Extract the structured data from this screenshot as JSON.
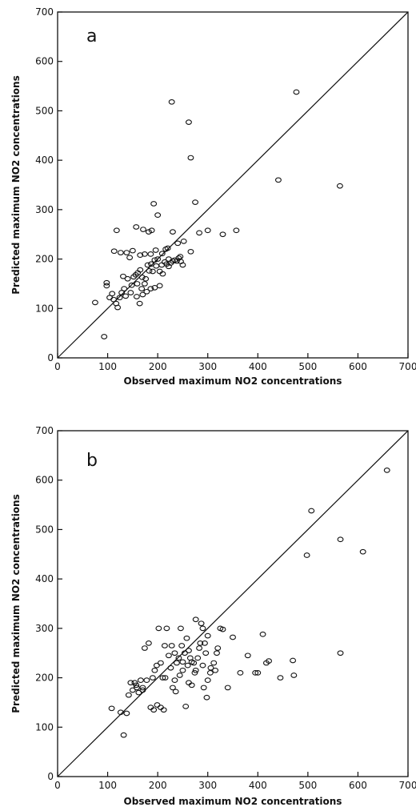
{
  "chart_data": [
    {
      "type": "scatter",
      "panel_label": "a",
      "xlabel": "Observed maximum NO2 concentrations",
      "ylabel": "Predicted maximum NO2 concentrations",
      "xlim": [
        0,
        700
      ],
      "ylim": [
        0,
        700
      ],
      "xticks": [
        "0",
        "100",
        "200",
        "300",
        "400",
        "500",
        "600",
        "700"
      ],
      "yticks": [
        "0",
        "100",
        "200",
        "300",
        "400",
        "500",
        "600",
        "700"
      ],
      "reference_line": "1:1",
      "grid": false,
      "points": [
        [
          228,
          518
        ],
        [
          262,
          477
        ],
        [
          477,
          538
        ],
        [
          266,
          405
        ],
        [
          441,
          360
        ],
        [
          564,
          348
        ],
        [
          192,
          312
        ],
        [
          275,
          315
        ],
        [
          200,
          289
        ],
        [
          118,
          258
        ],
        [
          157,
          265
        ],
        [
          171,
          260
        ],
        [
          182,
          255
        ],
        [
          188,
          258
        ],
        [
          230,
          255
        ],
        [
          300,
          258
        ],
        [
          330,
          250
        ],
        [
          357,
          258
        ],
        [
          113,
          216
        ],
        [
          126,
          213
        ],
        [
          138,
          213
        ],
        [
          150,
          217
        ],
        [
          144,
          203
        ],
        [
          165,
          208
        ],
        [
          174,
          210
        ],
        [
          186,
          210
        ],
        [
          196,
          218
        ],
        [
          209,
          211
        ],
        [
          216,
          220
        ],
        [
          220,
          222
        ],
        [
          240,
          232
        ],
        [
          252,
          236
        ],
        [
          266,
          215
        ],
        [
          283,
          253
        ],
        [
          98,
          152
        ],
        [
          98,
          146
        ],
        [
          104,
          122
        ],
        [
          109,
          130
        ],
        [
          112,
          118
        ],
        [
          117,
          110
        ],
        [
          120,
          102
        ],
        [
          124,
          122
        ],
        [
          128,
          132
        ],
        [
          133,
          140
        ],
        [
          136,
          125
        ],
        [
          146,
          132
        ],
        [
          148,
          147
        ],
        [
          152,
          164
        ],
        [
          156,
          168
        ],
        [
          160,
          172
        ],
        [
          165,
          178
        ],
        [
          169,
          163
        ],
        [
          174,
          150
        ],
        [
          176,
          160
        ],
        [
          180,
          188
        ],
        [
          183,
          176
        ],
        [
          187,
          190
        ],
        [
          190,
          175
        ],
        [
          194,
          198
        ],
        [
          197,
          186
        ],
        [
          200,
          200
        ],
        [
          204,
          175
        ],
        [
          208,
          188
        ],
        [
          214,
          194
        ],
        [
          218,
          190
        ],
        [
          222,
          185
        ],
        [
          226,
          192
        ],
        [
          230,
          196
        ],
        [
          234,
          198
        ],
        [
          238,
          196
        ],
        [
          242,
          202
        ],
        [
          246,
          195
        ],
        [
          250,
          188
        ],
        [
          158,
          124
        ],
        [
          164,
          110
        ],
        [
          170,
          128
        ],
        [
          178,
          134
        ],
        [
          186,
          140
        ],
        [
          194,
          142
        ],
        [
          204,
          146
        ],
        [
          75,
          112
        ],
        [
          93,
          43
        ],
        [
          131,
          165
        ],
        [
          140,
          160
        ],
        [
          159,
          150
        ],
        [
          168,
          140
        ],
        [
          210,
          170
        ],
        [
          222,
          200
        ],
        [
          245,
          205
        ]
      ]
    },
    {
      "type": "scatter",
      "panel_label": "b",
      "xlabel": "Observed maximum NO2 concentrations",
      "ylabel": "Predicted maximum NO2 concentrations",
      "xlim": [
        0,
        700
      ],
      "ylim": [
        0,
        700
      ],
      "xticks": [
        "0",
        "100",
        "200",
        "300",
        "400",
        "500",
        "600",
        "700"
      ],
      "yticks": [
        "0",
        "100",
        "200",
        "300",
        "400",
        "500",
        "600",
        "700"
      ],
      "reference_line": "1:1",
      "grid": false,
      "points": [
        [
          658,
          620
        ],
        [
          507,
          538
        ],
        [
          498,
          448
        ],
        [
          565,
          480
        ],
        [
          610,
          455
        ],
        [
          565,
          250
        ],
        [
          470,
          235
        ],
        [
          472,
          205
        ],
        [
          445,
          200
        ],
        [
          417,
          230
        ],
        [
          422,
          234
        ],
        [
          410,
          288
        ],
        [
          400,
          210
        ],
        [
          395,
          210
        ],
        [
          380,
          245
        ],
        [
          365,
          210
        ],
        [
          350,
          282
        ],
        [
          340,
          180
        ],
        [
          330,
          298
        ],
        [
          325,
          300
        ],
        [
          320,
          260
        ],
        [
          318,
          250
        ],
        [
          315,
          215
        ],
        [
          312,
          230
        ],
        [
          305,
          210
        ],
        [
          300,
          195
        ],
        [
          298,
          160
        ],
        [
          294,
          270
        ],
        [
          290,
          300
        ],
        [
          287,
          310
        ],
        [
          283,
          260
        ],
        [
          280,
          240
        ],
        [
          276,
          318
        ],
        [
          272,
          230
        ],
        [
          268,
          185
        ],
        [
          265,
          240
        ],
        [
          262,
          190
        ],
        [
          258,
          280
        ],
        [
          254,
          250
        ],
        [
          250,
          215
        ],
        [
          246,
          300
        ],
        [
          242,
          240
        ],
        [
          238,
          230
        ],
        [
          234,
          195
        ],
        [
          230,
          180
        ],
        [
          226,
          220
        ],
        [
          222,
          245
        ],
        [
          218,
          300
        ],
        [
          214,
          265
        ],
        [
          210,
          200
        ],
        [
          206,
          230
        ],
        [
          202,
          300
        ],
        [
          198,
          225
        ],
        [
          194,
          215
        ],
        [
          190,
          200
        ],
        [
          186,
          140
        ],
        [
          182,
          270
        ],
        [
          178,
          195
        ],
        [
          174,
          260
        ],
        [
          170,
          180
        ],
        [
          166,
          195
        ],
        [
          162,
          170
        ],
        [
          158,
          180
        ],
        [
          154,
          190
        ],
        [
          150,
          175
        ],
        [
          146,
          190
        ],
        [
          142,
          165
        ],
        [
          138,
          128
        ],
        [
          126,
          130
        ],
        [
          132,
          84
        ],
        [
          108,
          138
        ],
        [
          157,
          185
        ],
        [
          170,
          175
        ],
        [
          192,
          135
        ],
        [
          199,
          145
        ],
        [
          206,
          140
        ],
        [
          212,
          135
        ],
        [
          236,
          172
        ],
        [
          256,
          142
        ],
        [
          260,
          225
        ],
        [
          268,
          232
        ],
        [
          276,
          215
        ],
        [
          285,
          270
        ],
        [
          296,
          250
        ],
        [
          306,
          220
        ],
        [
          228,
          265
        ],
        [
          215,
          200
        ],
        [
          244,
          205
        ],
        [
          250,
          232
        ],
        [
          262,
          255
        ],
        [
          274,
          210
        ],
        [
          290,
          225
        ],
        [
          300,
          285
        ],
        [
          248,
          265
        ],
        [
          234,
          250
        ],
        [
          292,
          180
        ]
      ]
    }
  ]
}
